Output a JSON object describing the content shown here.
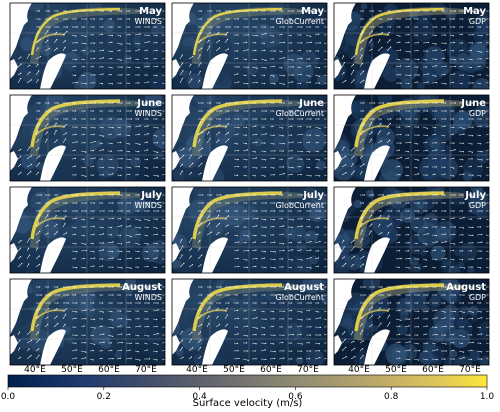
{
  "figure": {
    "rows": [
      "May",
      "June",
      "July",
      "August"
    ],
    "columns": [
      "WINDS",
      "GlobCurrent",
      "GDP"
    ],
    "panels": [
      {
        "month": "May",
        "source": "WINDS"
      },
      {
        "month": "May",
        "source": "GlobCurrent"
      },
      {
        "month": "May",
        "source": "GDP"
      },
      {
        "month": "June",
        "source": "WINDS"
      },
      {
        "month": "June",
        "source": "GlobCurrent"
      },
      {
        "month": "June",
        "source": "GDP"
      },
      {
        "month": "July",
        "source": "WINDS"
      },
      {
        "month": "July",
        "source": "GlobCurrent"
      },
      {
        "month": "July",
        "source": "GDP"
      },
      {
        "month": "August",
        "source": "WINDS"
      },
      {
        "month": "August",
        "source": "GlobCurrent"
      },
      {
        "month": "August",
        "source": "GDP"
      }
    ],
    "x_ticks": [
      "40°E",
      "50°E",
      "60°E",
      "70°E"
    ],
    "colorbar": {
      "label": "Surface velocity (m/s)",
      "ticks": [
        "0.0",
        "0.2",
        "0.4",
        "0.6",
        "0.8",
        "1.0"
      ],
      "range": [
        0.0,
        1.0
      ],
      "colormap": "cividis"
    },
    "colors": {
      "ocean_dark": "#0f2a45",
      "ocean_mid": "#2d4a6a",
      "land": "#ffffff",
      "jet": "#f5e04a",
      "arrow": "#ffffff"
    }
  }
}
